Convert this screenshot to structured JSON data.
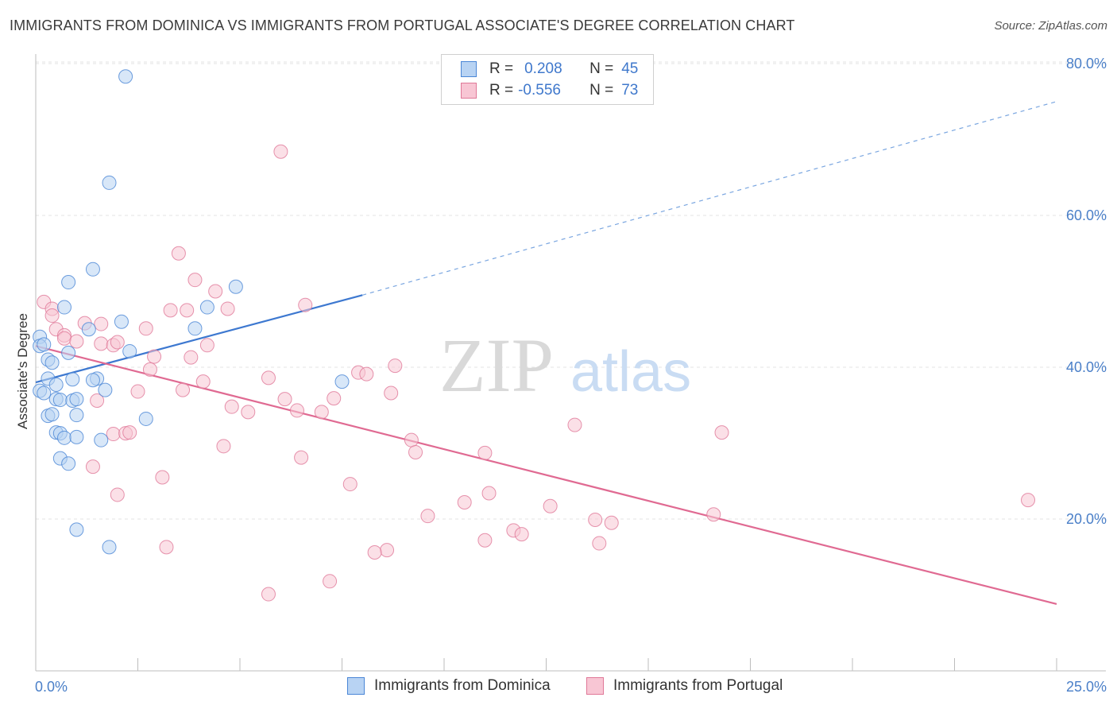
{
  "title": "IMMIGRANTS FROM DOMINICA VS IMMIGRANTS FROM PORTUGAL ASSOCIATE'S DEGREE CORRELATION CHART",
  "source": "Source: ZipAtlas.com",
  "watermark": {
    "zip": "ZIP",
    "atlas": "atlas"
  },
  "legend": {
    "r_label": "R =",
    "n_label": "N =",
    "series": [
      {
        "r": "0.208",
        "n": "45",
        "color": "#4a86d6",
        "fill": "#b8d3f3"
      },
      {
        "r": "-0.556",
        "n": "73",
        "color": "#e07898",
        "fill": "#f8c6d4"
      }
    ]
  },
  "bottom_legend": [
    "Immigrants from Dominica",
    "Immigrants from Portugal"
  ],
  "chart_data": {
    "type": "scatter",
    "title": "IMMIGRANTS FROM DOMINICA VS IMMIGRANTS FROM PORTUGAL ASSOCIATE'S DEGREE CORRELATION CHART",
    "xlabel": "",
    "ylabel": "Associate's Degree",
    "xlim": [
      0,
      25
    ],
    "ylim": [
      0,
      80
    ],
    "x_tick_labels": [
      "0.0%",
      "25.0%"
    ],
    "y_tick_labels": [
      "20.0%",
      "40.0%",
      "60.0%",
      "80.0%"
    ],
    "y_ticks": [
      20,
      40,
      60,
      80
    ],
    "grid": true,
    "series": [
      {
        "name": "Immigrants from Dominica",
        "color": "#4a86d6",
        "fill": "#b8d3f3",
        "points": [
          [
            2.2,
            78.3
          ],
          [
            1.8,
            64.3
          ],
          [
            1.4,
            52.9
          ],
          [
            0.8,
            51.2
          ],
          [
            4.9,
            50.6
          ],
          [
            0.7,
            47.9
          ],
          [
            4.2,
            47.9
          ],
          [
            2.1,
            46.0
          ],
          [
            1.3,
            45.0
          ],
          [
            3.9,
            45.1
          ],
          [
            0.1,
            44.0
          ],
          [
            0.1,
            42.8
          ],
          [
            0.2,
            43.0
          ],
          [
            0.8,
            41.9
          ],
          [
            2.3,
            42.1
          ],
          [
            0.3,
            41.0
          ],
          [
            0.4,
            40.6
          ],
          [
            0.3,
            38.5
          ],
          [
            0.9,
            38.4
          ],
          [
            1.5,
            38.5
          ],
          [
            1.4,
            38.3
          ],
          [
            7.5,
            38.1
          ],
          [
            0.5,
            37.7
          ],
          [
            1.7,
            37.0
          ],
          [
            0.1,
            36.9
          ],
          [
            0.2,
            36.6
          ],
          [
            0.5,
            35.8
          ],
          [
            0.6,
            35.7
          ],
          [
            0.9,
            35.6
          ],
          [
            1.0,
            35.8
          ],
          [
            0.3,
            33.6
          ],
          [
            0.4,
            33.8
          ],
          [
            1.0,
            33.7
          ],
          [
            2.7,
            33.2
          ],
          [
            0.5,
            31.4
          ],
          [
            0.6,
            31.3
          ],
          [
            0.7,
            30.7
          ],
          [
            1.0,
            30.8
          ],
          [
            1.6,
            30.4
          ],
          [
            0.6,
            28.0
          ],
          [
            0.8,
            27.3
          ],
          [
            1.0,
            18.6
          ],
          [
            1.8,
            16.3
          ]
        ],
        "trend": {
          "x0": 0,
          "y0": 38.0,
          "x1": 8.0,
          "y1": 49.5,
          "dash_to": {
            "x": 25,
            "y": 75.0
          }
        }
      },
      {
        "name": "Immigrants from Portugal",
        "color": "#e07898",
        "fill": "#f8c6d4",
        "points": [
          [
            6.0,
            68.4
          ],
          [
            3.5,
            55.0
          ],
          [
            3.9,
            51.5
          ],
          [
            4.4,
            50.0
          ],
          [
            0.2,
            48.6
          ],
          [
            0.4,
            47.7
          ],
          [
            0.4,
            46.8
          ],
          [
            3.3,
            47.5
          ],
          [
            3.7,
            47.5
          ],
          [
            4.7,
            47.7
          ],
          [
            6.6,
            48.2
          ],
          [
            1.6,
            45.7
          ],
          [
            2.7,
            45.1
          ],
          [
            0.5,
            45.0
          ],
          [
            0.7,
            44.2
          ],
          [
            1.6,
            43.1
          ],
          [
            1.9,
            42.9
          ],
          [
            2.0,
            43.3
          ],
          [
            4.2,
            42.9
          ],
          [
            1.2,
            45.8
          ],
          [
            0.7,
            43.8
          ],
          [
            1.0,
            43.4
          ],
          [
            2.9,
            41.4
          ],
          [
            3.8,
            41.3
          ],
          [
            8.8,
            40.2
          ],
          [
            2.8,
            39.7
          ],
          [
            7.9,
            39.3
          ],
          [
            8.1,
            39.1
          ],
          [
            5.7,
            38.6
          ],
          [
            4.1,
            38.1
          ],
          [
            3.6,
            37.0
          ],
          [
            2.5,
            36.8
          ],
          [
            8.7,
            36.6
          ],
          [
            6.1,
            35.8
          ],
          [
            7.3,
            35.9
          ],
          [
            1.5,
            35.6
          ],
          [
            4.8,
            34.8
          ],
          [
            5.2,
            34.1
          ],
          [
            6.4,
            34.3
          ],
          [
            7.0,
            34.1
          ],
          [
            13.2,
            32.4
          ],
          [
            16.8,
            31.4
          ],
          [
            1.9,
            31.2
          ],
          [
            2.2,
            31.3
          ],
          [
            2.3,
            31.4
          ],
          [
            9.2,
            30.4
          ],
          [
            4.6,
            29.6
          ],
          [
            9.3,
            28.8
          ],
          [
            11.0,
            28.7
          ],
          [
            6.5,
            28.1
          ],
          [
            1.4,
            26.9
          ],
          [
            3.1,
            25.5
          ],
          [
            7.7,
            24.6
          ],
          [
            2.0,
            23.2
          ],
          [
            11.1,
            23.4
          ],
          [
            10.5,
            22.2
          ],
          [
            12.6,
            21.7
          ],
          [
            9.6,
            20.4
          ],
          [
            16.6,
            20.6
          ],
          [
            13.7,
            19.9
          ],
          [
            14.1,
            19.5
          ],
          [
            11.7,
            18.5
          ],
          [
            11.9,
            18.0
          ],
          [
            11.0,
            17.2
          ],
          [
            13.8,
            16.8
          ],
          [
            3.2,
            16.3
          ],
          [
            8.6,
            15.9
          ],
          [
            8.3,
            15.6
          ],
          [
            24.3,
            22.5
          ],
          [
            5.7,
            10.1
          ],
          [
            7.2,
            11.8
          ]
        ],
        "trend": {
          "x0": 0,
          "y0": 42.8,
          "x1": 25,
          "y1": 8.8
        }
      }
    ]
  }
}
